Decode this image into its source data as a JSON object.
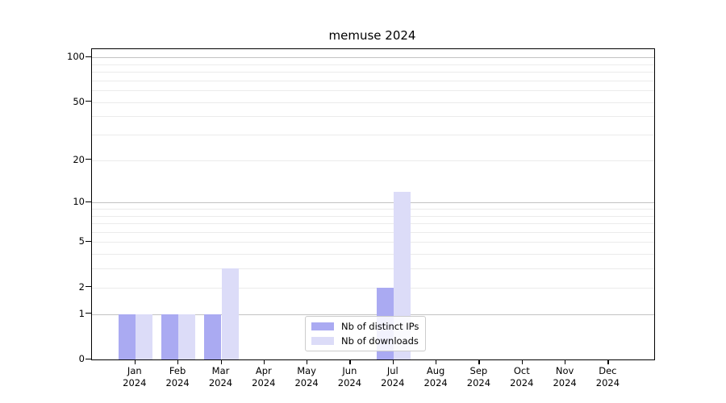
{
  "chart_data": {
    "type": "bar",
    "title": "memuse 2024",
    "categories": [
      "Jan",
      "Feb",
      "Mar",
      "Apr",
      "May",
      "Jun",
      "Jul",
      "Aug",
      "Sep",
      "Oct",
      "Nov",
      "Dec"
    ],
    "x_sublabel_year": "2024",
    "yscale": "log1p",
    "ylim": [
      0,
      113
    ],
    "yticks": [
      0,
      1,
      2,
      5,
      10,
      20,
      50,
      100
    ],
    "grid": {
      "on": true,
      "major": [
        1,
        10,
        100
      ],
      "minor": [
        2,
        3,
        4,
        5,
        6,
        7,
        8,
        9,
        20,
        30,
        40,
        50,
        60,
        70,
        80,
        90
      ]
    },
    "series": [
      {
        "name": "Nb of distinct IPs",
        "color": "#aaaaf2",
        "values": [
          1,
          1,
          1,
          0,
          0,
          0,
          2,
          0,
          0,
          0,
          0,
          0
        ]
      },
      {
        "name": "Nb of downloads",
        "color": "#dcdcf8",
        "values": [
          1,
          1,
          3,
          0,
          0,
          0,
          12,
          0,
          0,
          0,
          0,
          0
        ]
      }
    ],
    "legend_position": "lower center"
  },
  "colors": {
    "major_grid": "#c3c3c3",
    "minor_grid": "#ebebeb",
    "spine": "#000000"
  }
}
